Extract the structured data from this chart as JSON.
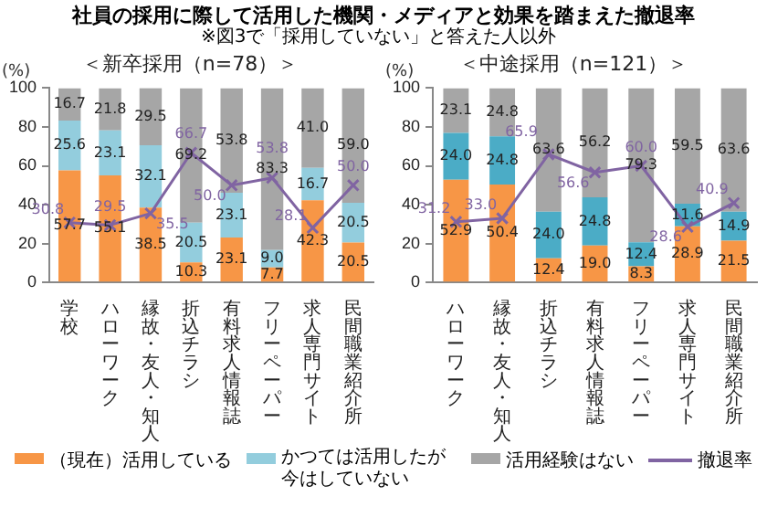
{
  "chart_data": [
    {
      "type": "bar",
      "title": "社員の採用に際して活用した機関・メディアと効果を踏まえた撤退率",
      "subtitle": "※図3で「採用していない」と答えた人以外",
      "annotations": [
        "＜新卒採用（n=78）＞"
      ],
      "ylabel": "(%)",
      "categories": [
        "学校",
        "ハローワーク",
        "縁故・友人・知人",
        "折込チラシ",
        "有料求人情報誌",
        "フリーペーパー",
        "求人専門サイト",
        "民間職業紹介所"
      ],
      "stacked": true,
      "ylim": [
        0,
        100
      ],
      "yticks": [
        0,
        20,
        40,
        60,
        80,
        100
      ],
      "legend": "bottom",
      "series": [
        {
          "name": "（現在）活用している",
          "color": "#f79646",
          "values": [
            57.7,
            55.1,
            38.5,
            10.3,
            23.1,
            7.7,
            42.3,
            20.5
          ],
          "value_labels": [
            "57.7",
            "55.1",
            "38.5",
            "10.3",
            "23.1",
            "7.7",
            "42.3",
            "20.5"
          ]
        },
        {
          "name": "かつては活用したが今はしていない",
          "color": "#93cddd",
          "values": [
            25.6,
            23.1,
            32.1,
            20.5,
            23.1,
            9.0,
            16.7,
            20.5
          ],
          "value_labels": [
            "25.6",
            "23.1",
            "32.1",
            "20.5",
            "23.1",
            "9.0",
            "16.7",
            "20.5"
          ]
        },
        {
          "name": "活用経験はない",
          "color": "#a6a6a6",
          "values": [
            16.7,
            21.8,
            29.5,
            69.2,
            53.8,
            83.3,
            41.0,
            59.0
          ],
          "value_labels": [
            "16.7",
            "21.8",
            "29.5",
            "69.2",
            "53.8",
            "83.3",
            "41.0",
            "59.0"
          ]
        },
        {
          "name": "撤退率",
          "type": "line",
          "color": "#8064a2",
          "marker": "cross",
          "values": [
            30.8,
            29.5,
            35.5,
            66.7,
            50.0,
            53.8,
            28.1,
            50.0
          ],
          "value_labels": [
            "30.8",
            "29.5",
            "35.5",
            "66.7",
            "50.0",
            "53.8",
            "28.1",
            "50.0"
          ]
        }
      ]
    },
    {
      "type": "bar",
      "title": "＜中途採用（n=121）＞",
      "ylabel": "(%)",
      "categories": [
        "ハローワーク",
        "縁故・友人・知人",
        "折込チラシ",
        "有料求人情報誌",
        "フリーペーパー",
        "求人専門サイト",
        "民間職業紹介所"
      ],
      "stacked": true,
      "ylim": [
        0,
        100
      ],
      "yticks": [
        0,
        20,
        40,
        60,
        80,
        100
      ],
      "series": [
        {
          "color": "#f79646",
          "values": [
            52.9,
            50.4,
            12.4,
            19.0,
            8.3,
            28.9,
            21.5
          ],
          "value_labels": [
            "52.9",
            "50.4",
            "12.4",
            "19.0",
            "8.3",
            "28.9",
            "21.5"
          ]
        },
        {
          "color": "#4bacc6",
          "values": [
            24.0,
            24.8,
            24.0,
            24.8,
            12.4,
            11.6,
            14.9
          ],
          "value_labels": [
            "24.0",
            "24.8",
            "24.0",
            "24.8",
            "12.4",
            "11.6",
            "14.9"
          ]
        },
        {
          "color": "#a6a6a6",
          "values": [
            23.1,
            24.8,
            63.6,
            56.2,
            79.3,
            59.5,
            63.6
          ],
          "value_labels": [
            "23.1",
            "24.8",
            "63.6",
            "56.2",
            "79.3",
            "59.5",
            "63.6"
          ]
        },
        {
          "type": "line",
          "color": "#8064a2",
          "marker": "cross",
          "values": [
            31.2,
            33.0,
            65.9,
            56.6,
            60.0,
            28.6,
            40.9
          ],
          "value_labels": [
            "31.2",
            "33.0",
            "65.9",
            "56.6",
            "60.0",
            "28.6",
            "40.9"
          ]
        }
      ]
    }
  ]
}
